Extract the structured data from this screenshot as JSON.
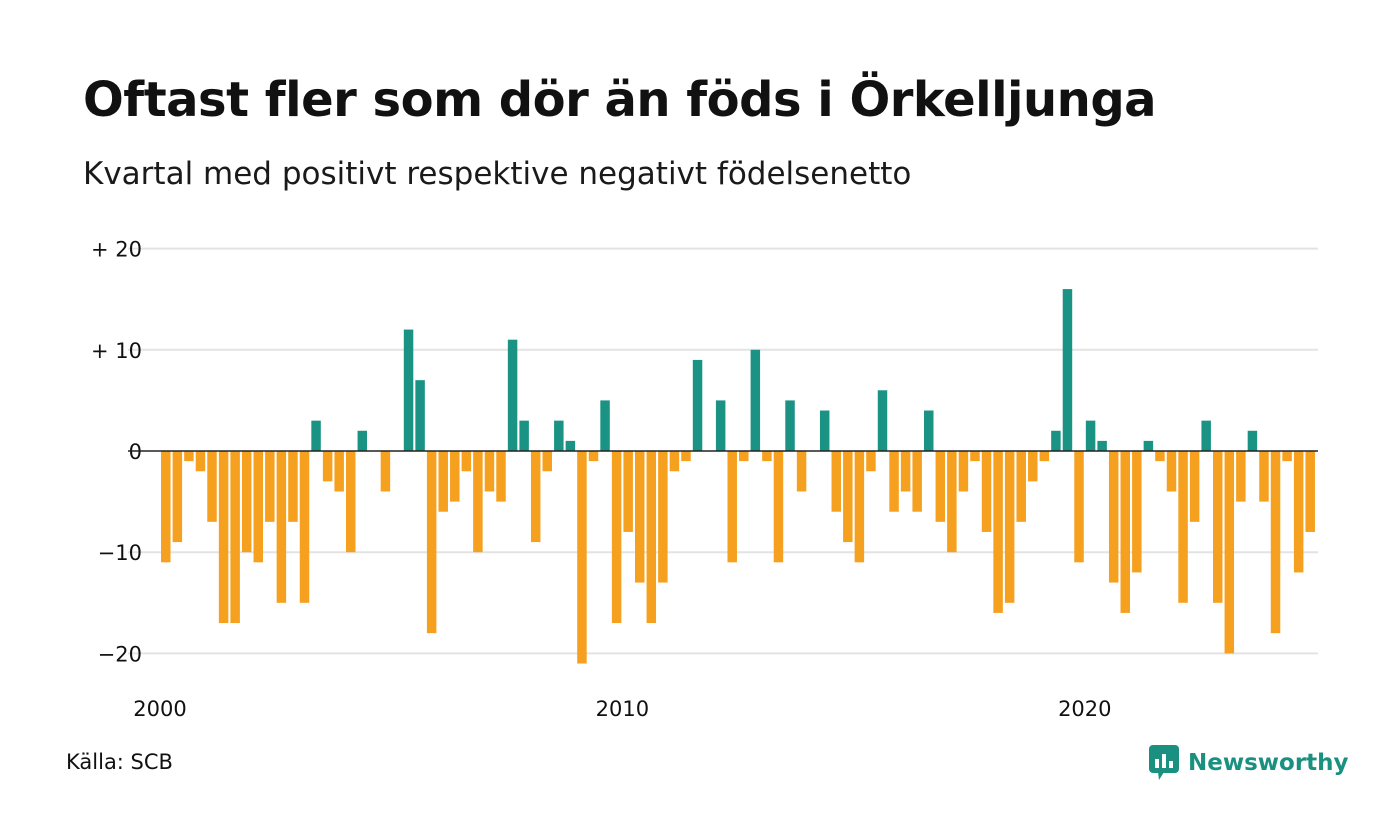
{
  "title": "Oftast fler som dör än föds i Örkelljunga",
  "subtitle": "Kvartal med positivt respektive negativt födelsenetto",
  "source": "Källa: SCB",
  "brand": {
    "name": "Newsworthy",
    "icon": "newsworthy-logo-icon"
  },
  "colors": {
    "positive": "#1a9385",
    "negative": "#f5a01e",
    "grid": "#e3e3e3",
    "zero_line": "#222222"
  },
  "chart_data": {
    "type": "bar",
    "ylim": [
      -23,
      20
    ],
    "yticks": [
      {
        "value": 20,
        "label": "+ 20"
      },
      {
        "value": 10,
        "label": "+ 10"
      },
      {
        "value": 0,
        "label": "0"
      },
      {
        "value": -10,
        "label": "−10"
      },
      {
        "value": -20,
        "label": "−20"
      }
    ],
    "xticks": [
      {
        "index": 0,
        "label": "2000"
      },
      {
        "index": 40,
        "label": "2010"
      },
      {
        "index": 80,
        "label": "2020"
      }
    ],
    "grid": true,
    "start": "2000 Q1",
    "frequency": "quarterly",
    "values": [
      -11,
      -9,
      -1,
      -2,
      -7,
      -17,
      -17,
      -10,
      -11,
      -7,
      -15,
      -7,
      -15,
      3,
      -3,
      -4,
      -10,
      2,
      0,
      -4,
      0,
      12,
      7,
      -18,
      -6,
      -5,
      -2,
      -10,
      -4,
      -5,
      11,
      3,
      -9,
      -2,
      3,
      1,
      -21,
      -1,
      5,
      -17,
      -8,
      -13,
      -17,
      -13,
      -2,
      -1,
      9,
      0,
      5,
      -11,
      -1,
      10,
      -1,
      -11,
      5,
      -4,
      0,
      4,
      -6,
      -9,
      -11,
      -2,
      6,
      -6,
      -4,
      -6,
      4,
      -7,
      -10,
      -4,
      -1,
      -8,
      -16,
      -15,
      -7,
      -3,
      -1,
      2,
      16,
      -11,
      3,
      1,
      -13,
      -16,
      -12,
      1,
      -1,
      -4,
      -15,
      -7,
      3,
      -15,
      -20,
      -5,
      2,
      -5,
      -18,
      -1,
      -12,
      -8
    ]
  }
}
